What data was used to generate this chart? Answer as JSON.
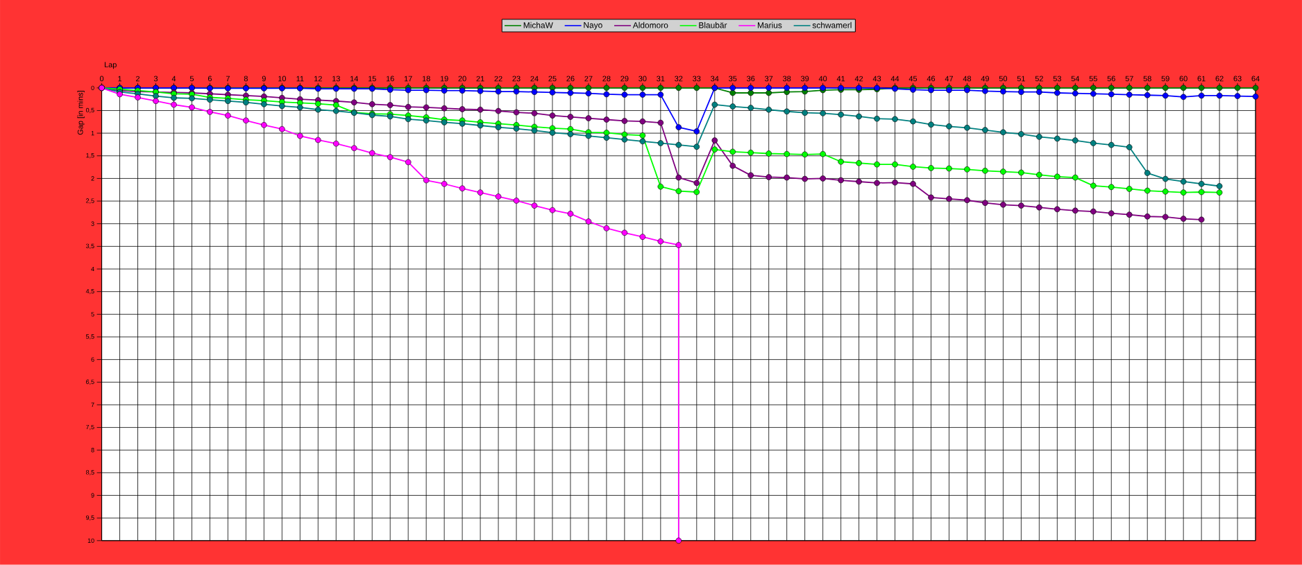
{
  "chart_data": {
    "type": "line",
    "xlabel": "Lap",
    "ylabel": "Gap [in mins]",
    "x": [
      0,
      1,
      2,
      3,
      4,
      5,
      6,
      7,
      8,
      9,
      10,
      11,
      12,
      13,
      14,
      15,
      16,
      17,
      18,
      19,
      20,
      21,
      22,
      23,
      24,
      25,
      26,
      27,
      28,
      29,
      30,
      31,
      32,
      33,
      34,
      35,
      36,
      37,
      38,
      39,
      40,
      41,
      42,
      43,
      44,
      45,
      46,
      47,
      48,
      49,
      50,
      51,
      52,
      53,
      54,
      55,
      56,
      57,
      58,
      59,
      60,
      61,
      62,
      63,
      64
    ],
    "series": [
      {
        "name": "MichaW",
        "color": "#008000",
        "values": [
          0,
          0,
          0,
          0,
          0,
          0,
          0,
          0,
          0,
          0,
          0,
          0,
          0,
          0,
          0,
          0,
          0,
          0,
          0,
          0,
          0,
          0,
          0,
          0,
          0,
          0,
          0,
          0,
          0,
          0,
          0,
          0,
          0,
          0,
          0,
          0.11,
          0.11,
          0.11,
          0.09,
          0.08,
          0.05,
          0.04,
          0.04,
          0.03,
          0,
          0,
          0,
          0,
          0,
          0,
          0,
          0,
          0,
          0,
          0,
          0,
          0,
          0,
          0,
          0,
          0,
          0,
          0,
          0,
          0
        ]
      },
      {
        "name": "Nayo",
        "color": "#0000ff",
        "values": [
          0,
          0,
          0,
          0,
          0,
          0,
          0.01,
          0.01,
          0.01,
          0.01,
          0.01,
          0.01,
          0.02,
          0.02,
          0.02,
          0.02,
          0.04,
          0.05,
          0.05,
          0.06,
          0.06,
          0.07,
          0.08,
          0.08,
          0.09,
          0.1,
          0.11,
          0.12,
          0.14,
          0.15,
          0.15,
          0.15,
          0.87,
          0.96,
          0,
          0,
          0,
          0,
          0,
          0,
          0,
          0,
          0,
          0,
          0.02,
          0.04,
          0.05,
          0.05,
          0.05,
          0.07,
          0.08,
          0.09,
          0.09,
          0.11,
          0.12,
          0.13,
          0.14,
          0.15,
          0.16,
          0.17,
          0.2,
          0.17,
          0.17,
          0.18,
          0.19
        ]
      },
      {
        "name": "Aldomoro",
        "color": "#800080",
        "values": [
          0,
          0.06,
          0.08,
          0.09,
          0.1,
          0.11,
          0.13,
          0.15,
          0.17,
          0.19,
          0.22,
          0.25,
          0.27,
          0.29,
          0.32,
          0.36,
          0.38,
          0.42,
          0.43,
          0.45,
          0.47,
          0.48,
          0.51,
          0.54,
          0.56,
          0.61,
          0.64,
          0.67,
          0.7,
          0.73,
          0.74,
          0.77,
          1.98,
          2.1,
          1.16,
          1.72,
          1.93,
          1.97,
          1.98,
          2.01,
          2.0,
          2.04,
          2.07,
          2.1,
          2.09,
          2.12,
          2.42,
          2.45,
          2.48,
          2.54,
          2.58,
          2.6,
          2.64,
          2.68,
          2.71,
          2.73,
          2.77,
          2.8,
          2.84,
          2.85,
          2.89,
          2.91,
          null,
          null,
          null
        ]
      },
      {
        "name": "Blaubär",
        "color": "#00ff00",
        "values": [
          0,
          0.03,
          0.06,
          0.09,
          0.13,
          0.14,
          0.21,
          0.23,
          0.26,
          0.28,
          0.31,
          0.33,
          0.35,
          0.38,
          0.54,
          0.57,
          0.58,
          0.61,
          0.65,
          0.7,
          0.72,
          0.76,
          0.79,
          0.82,
          0.86,
          0.89,
          0.91,
          0.98,
          0.99,
          1.03,
          1.05,
          2.18,
          2.28,
          2.3,
          1.36,
          1.41,
          1.43,
          1.45,
          1.46,
          1.47,
          1.46,
          1.63,
          1.66,
          1.69,
          1.69,
          1.74,
          1.77,
          1.78,
          1.8,
          1.83,
          1.85,
          1.87,
          1.92,
          1.96,
          1.98,
          2.16,
          2.19,
          2.23,
          2.27,
          2.29,
          2.31,
          2.3,
          2.31,
          null,
          null
        ]
      },
      {
        "name": "Marius",
        "color": "#ff00ff",
        "x": [
          0,
          1,
          2,
          3,
          4,
          5,
          6,
          7,
          8,
          9,
          10,
          11,
          12,
          13,
          14,
          15,
          16,
          17,
          18,
          19,
          20,
          21,
          22,
          23,
          24,
          25,
          26,
          27,
          28,
          29,
          30,
          31,
          32,
          32
        ],
        "values": [
          0,
          0.14,
          0.21,
          0.29,
          0.37,
          0.43,
          0.53,
          0.61,
          0.72,
          0.82,
          0.91,
          1.06,
          1.15,
          1.23,
          1.33,
          1.44,
          1.53,
          1.64,
          2.04,
          2.12,
          2.22,
          2.31,
          2.4,
          2.49,
          2.6,
          2.7,
          2.78,
          2.95,
          3.1,
          3.2,
          3.29,
          3.39,
          3.47,
          10
        ]
      },
      {
        "name": "schwamerl",
        "color": "#008080",
        "values": [
          0,
          0.09,
          0.13,
          0.18,
          0.22,
          0.23,
          0.26,
          0.29,
          0.32,
          0.36,
          0.4,
          0.43,
          0.48,
          0.51,
          0.55,
          0.6,
          0.63,
          0.69,
          0.72,
          0.76,
          0.79,
          0.83,
          0.87,
          0.9,
          0.94,
          0.99,
          1.02,
          1.06,
          1.1,
          1.14,
          1.18,
          1.22,
          1.26,
          1.3,
          0.37,
          0.41,
          0.44,
          0.48,
          0.52,
          0.55,
          0.56,
          0.59,
          0.63,
          0.68,
          0.69,
          0.74,
          0.81,
          0.85,
          0.88,
          0.93,
          0.98,
          1.02,
          1.08,
          1.12,
          1.16,
          1.22,
          1.26,
          1.31,
          1.88,
          2.01,
          2.07,
          2.12,
          2.17,
          null,
          null
        ]
      }
    ],
    "xlim": [
      0,
      64
    ],
    "xticks": [
      0,
      1,
      2,
      3,
      4,
      5,
      6,
      7,
      8,
      9,
      10,
      11,
      12,
      13,
      14,
      15,
      16,
      17,
      18,
      19,
      20,
      21,
      22,
      23,
      24,
      25,
      26,
      27,
      28,
      29,
      30,
      31,
      32,
      33,
      34,
      35,
      36,
      37,
      38,
      39,
      40,
      41,
      42,
      43,
      44,
      45,
      46,
      47,
      48,
      49,
      50,
      51,
      52,
      53,
      54,
      55,
      56,
      57,
      58,
      59,
      60,
      61,
      62,
      63,
      64
    ],
    "ylim": [
      10,
      0
    ],
    "yticks": [
      0,
      {
        "value": 0.5,
        "label": "0,5"
      },
      1,
      {
        "value": 1.5,
        "label": "1,5"
      },
      2,
      {
        "value": 2.5,
        "label": "2,5"
      },
      3,
      {
        "value": 3.5,
        "label": "3,5"
      },
      4,
      {
        "value": 4.5,
        "label": "4,5"
      },
      5,
      {
        "value": 5.5,
        "label": "5,5"
      },
      6,
      {
        "value": 6.5,
        "label": "6,5"
      },
      7,
      {
        "value": 7.5,
        "label": "7,5"
      },
      8,
      {
        "value": 8.5,
        "label": "8,5"
      },
      9,
      {
        "value": 9.5,
        "label": "9,5"
      },
      10
    ],
    "grid": true,
    "legend": "top",
    "marker": "circle",
    "line_style": "solid"
  }
}
